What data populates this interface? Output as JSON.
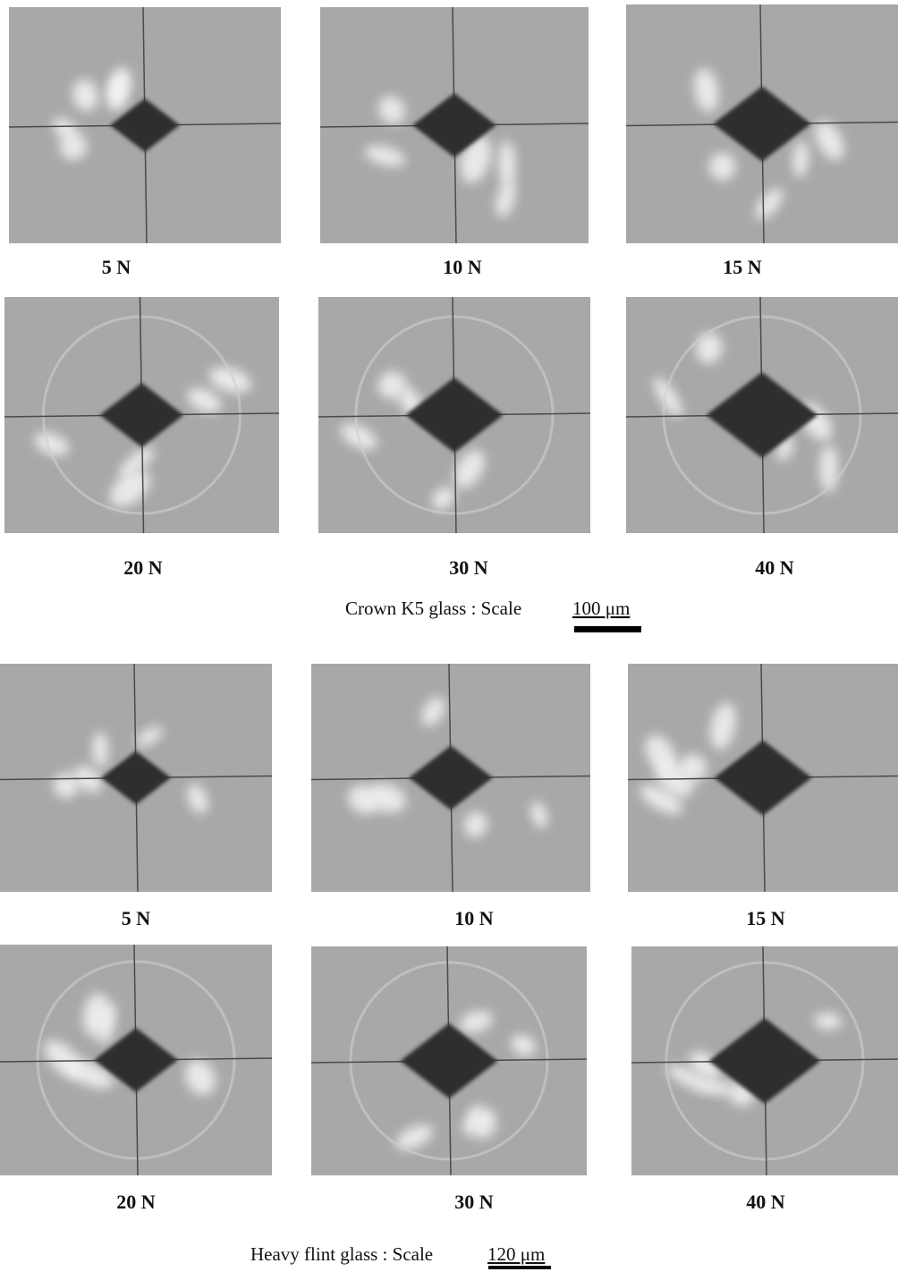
{
  "crown": {
    "labels": [
      "5 N",
      "10 N",
      "15 N",
      "20 N",
      "30 N",
      "40 N"
    ],
    "caption": "Crown K5 glass : Scale",
    "scale": "100 μm"
  },
  "flint": {
    "labels": [
      "5 N",
      "10 N",
      "15 N",
      "20 N",
      "30 N",
      "40 N"
    ],
    "caption": "Heavy flint glass : Scale",
    "scale": "120 μm"
  }
}
